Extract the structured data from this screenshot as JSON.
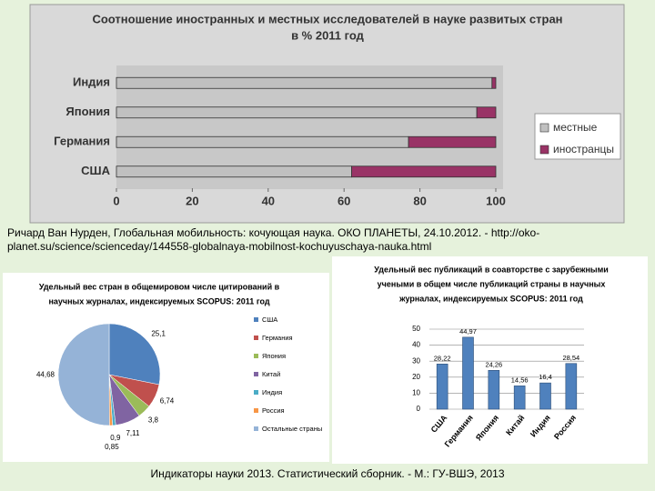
{
  "chart_data": [
    {
      "type": "hbar",
      "stacked": true,
      "title": [
        "Соотношение иностранных и местных исследователей в науке развитых стран",
        "в % 2011 год"
      ],
      "categories": [
        "Индия",
        "Япония",
        "Германия",
        "США"
      ],
      "series": [
        {
          "name": "местные",
          "color": "#c0c0c0",
          "values": [
            99,
            95,
            77,
            62
          ]
        },
        {
          "name": "иностранцы",
          "color": "#993366",
          "values": [
            1,
            5,
            23,
            38
          ]
        }
      ],
      "xlim": [
        0,
        100
      ],
      "xticks": [
        0,
        20,
        40,
        60,
        80,
        100
      ],
      "legend": "right"
    },
    {
      "type": "pie",
      "title": [
        "Удельный вес стран в общемировом числе цитирований в",
        "научных журналах, индексируемых SCOPUS: 2011 год"
      ],
      "categories": [
        "США",
        "Германия",
        "Япония",
        "Китай",
        "Индия",
        "Россия",
        "Остальные страны"
      ],
      "values": [
        25.1,
        6.74,
        3.8,
        7.11,
        0.9,
        0.85,
        44.68
      ],
      "value_labels": [
        "25,1",
        "6,74",
        "3,8",
        "7,11",
        "0,9",
        "0,85",
        "44,68"
      ],
      "colors": [
        "#4f81bd",
        "#c0504d",
        "#9bbb59",
        "#8064a2",
        "#4bacc6",
        "#f79646",
        "#95b3d7"
      ],
      "legend": "right"
    },
    {
      "type": "bar",
      "title": [
        "Удельный вес публикаций в соавторстве с зарубежными",
        "учеными в общем числе публикаций страны в научных",
        "журналах, индексируемых SCOPUS: 2011 год"
      ],
      "categories": [
        "США",
        "Германия",
        "Япония",
        "Китай",
        "Индия",
        "Россия"
      ],
      "values": [
        28.22,
        44.97,
        24.26,
        14.56,
        16.4,
        28.54
      ],
      "value_labels": [
        "28,22",
        "44,97",
        "24,26",
        "14,56",
        "16,4",
        "28,54"
      ],
      "color": "#4f81bd",
      "ylim": [
        0,
        50
      ],
      "yticks": [
        0,
        10,
        20,
        30,
        40,
        50
      ],
      "grid": true
    }
  ],
  "source_note": [
    "Ричард Ван Нурден, Глобальная мобильность: кочующая наука. ОКО ПЛАНЕТЫ, 24.10.2012. - http://oko-",
    "planet.su/science/scienceday/144558-globalnaya-mobilnost-kochuyuschaya-nauka.html"
  ],
  "footer": "Индикаторы науки 2013. Статистический сборник. - М.: ГУ-ВШЭ, 2013"
}
